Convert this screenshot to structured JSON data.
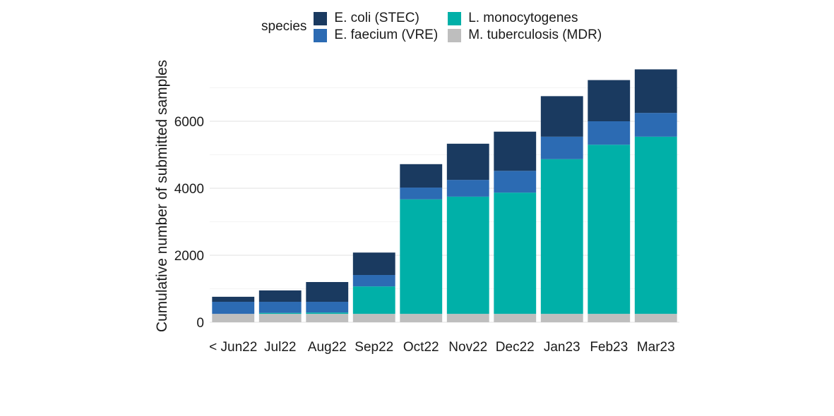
{
  "chart_data": {
    "type": "bar",
    "stacked": true,
    "title": "",
    "xlabel": "",
    "ylabel": "Cumulative number of submitted samples",
    "ylim": [
      0,
      7800
    ],
    "yticks": [
      0,
      2000,
      4000,
      6000
    ],
    "minor_gridlines": [
      1000,
      3000,
      5000,
      7000
    ],
    "grid": true,
    "legend": {
      "title": "species",
      "placement": "top",
      "entries": [
        "E. coli (STEC)",
        "E. faecium (VRE)",
        "L. monocytogenes",
        "M. tuberculosis (MDR)"
      ]
    },
    "categories": [
      "< Jun22",
      "Jul22",
      "Aug22",
      "Sep22",
      "Oct22",
      "Nov22",
      "Dec22",
      "Jan23",
      "Feb23",
      "Mar23"
    ],
    "series": [
      {
        "name": "M. tuberculosis (MDR)",
        "color": "#bebebe",
        "values": [
          250,
          250,
          250,
          250,
          250,
          250,
          250,
          250,
          250,
          250
        ]
      },
      {
        "name": "L. monocytogenes",
        "color": "#00b0a8",
        "values": [
          0,
          30,
          40,
          820,
          3420,
          3500,
          3620,
          4620,
          5050,
          5290
        ]
      },
      {
        "name": "E. faecium (VRE)",
        "color": "#2c6bb3",
        "values": [
          360,
          330,
          320,
          340,
          350,
          500,
          650,
          670,
          700,
          710
        ]
      },
      {
        "name": "E. coli (STEC)",
        "color": "#1a3a60",
        "values": [
          150,
          340,
          590,
          670,
          700,
          1080,
          1170,
          1210,
          1230,
          1300
        ]
      }
    ],
    "totals": [
      760,
      950,
      1200,
      2080,
      4720,
      5330,
      5690,
      6750,
      7230,
      7550
    ]
  }
}
